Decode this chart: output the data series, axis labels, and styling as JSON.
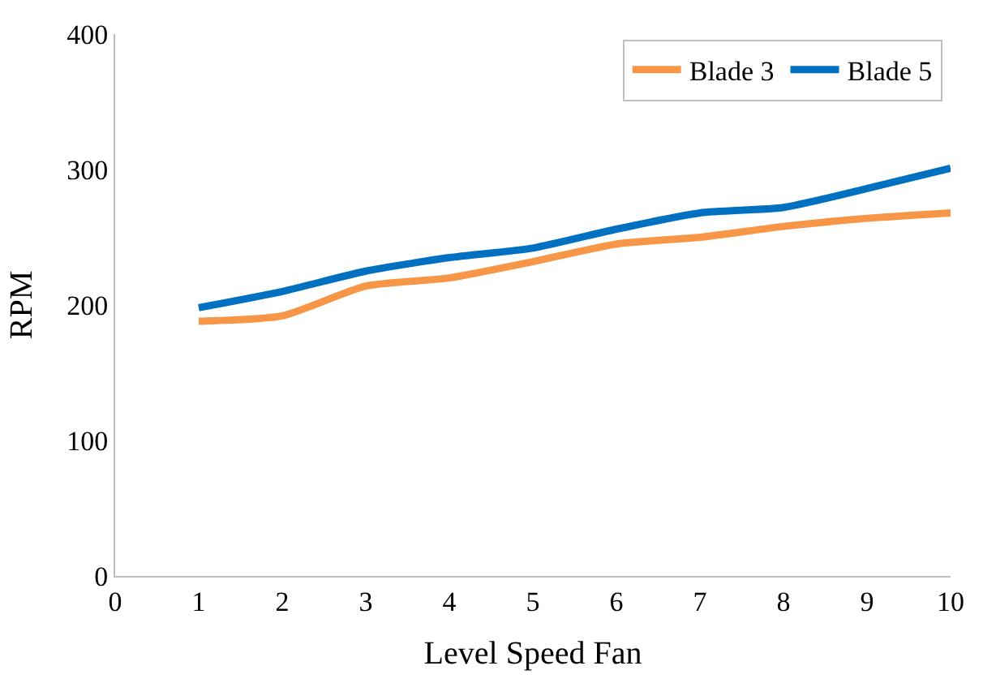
{
  "chart_data": {
    "type": "line",
    "xlabel": "Level Speed Fan",
    "ylabel": "RPM",
    "x": [
      1,
      2,
      3,
      4,
      5,
      6,
      7,
      8,
      9,
      10
    ],
    "series": [
      {
        "name": "Blade 3",
        "color": "#f79646",
        "values": [
          188,
          192,
          214,
          220,
          232,
          245,
          250,
          258,
          264,
          268
        ]
      },
      {
        "name": "Blade 5",
        "color": "#0070c0",
        "values": [
          198,
          210,
          225,
          235,
          242,
          256,
          268,
          272,
          286,
          301
        ]
      }
    ],
    "xlim": [
      0,
      10
    ],
    "xticks": [
      0,
      1,
      2,
      3,
      4,
      5,
      6,
      7,
      8,
      9,
      10
    ],
    "ylim": [
      0,
      400
    ],
    "yticks": [
      0,
      100,
      200,
      300,
      400
    ],
    "legend": "top right",
    "marker": "none",
    "line_style": "solid"
  }
}
